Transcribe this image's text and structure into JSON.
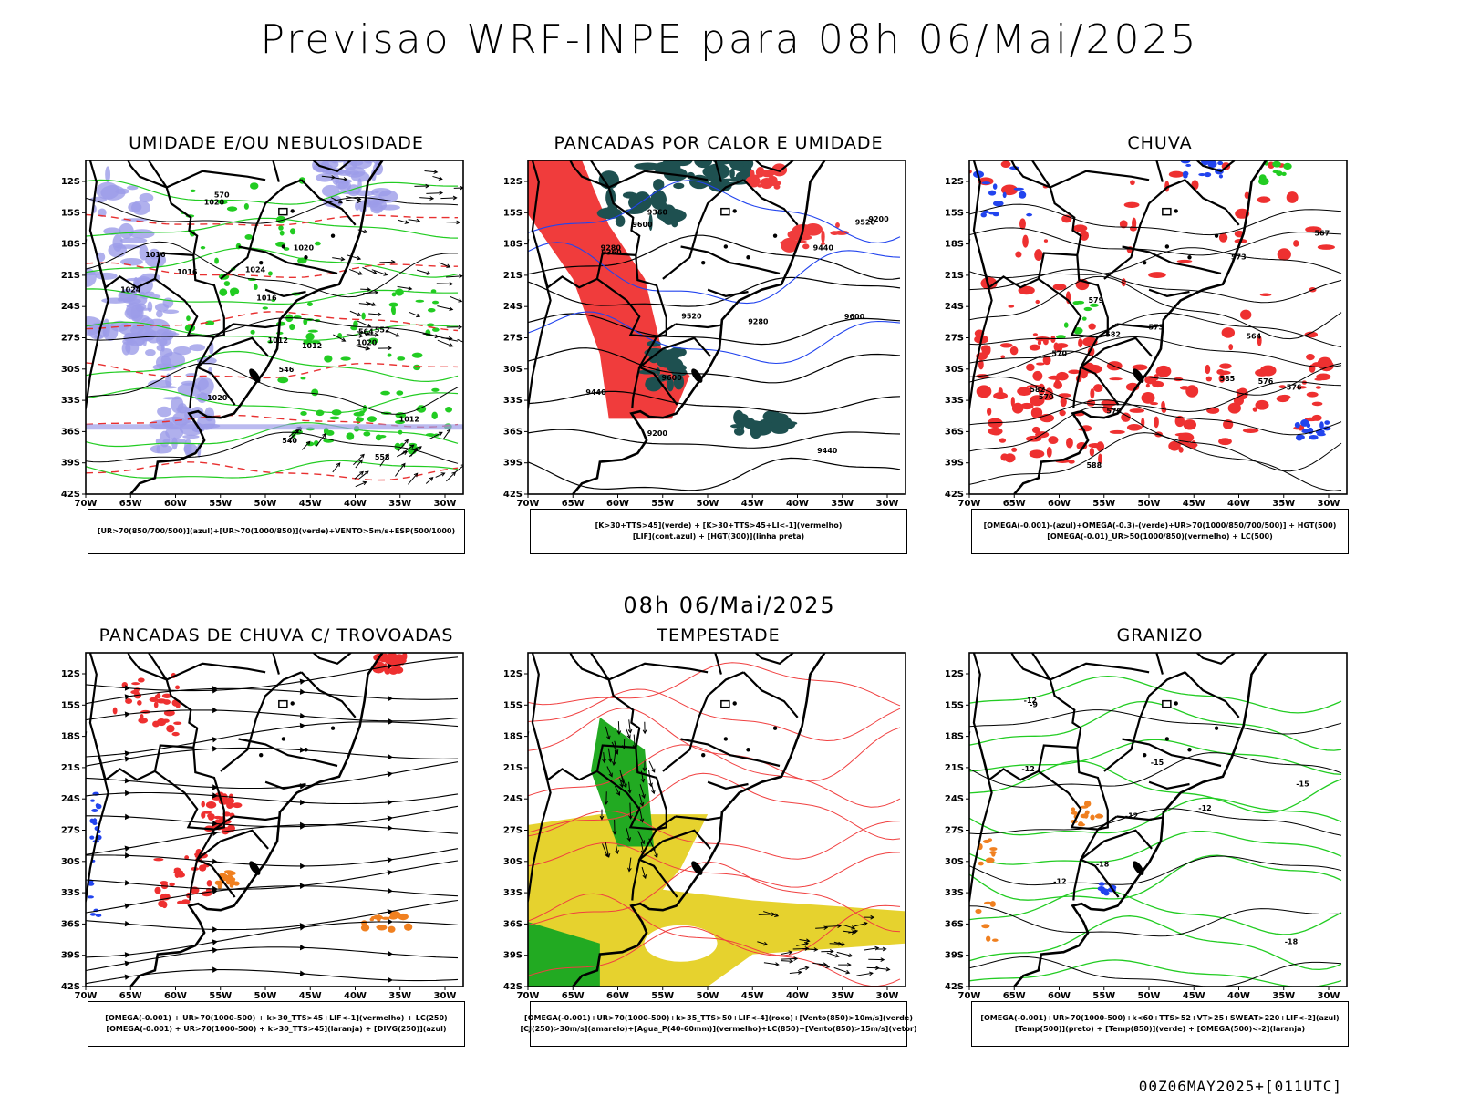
{
  "title": "Previsao WRF-INPE  para 08h 06/Mai/2025",
  "subtitle": "08h 06/Mai/2025",
  "footer": "00Z06MAY2025+[011UTC]",
  "axes": {
    "lat_labels": [
      "12S",
      "15S",
      "18S",
      "21S",
      "24S",
      "27S",
      "30S",
      "33S",
      "36S",
      "39S",
      "42S"
    ],
    "lon_labels": [
      "70W",
      "65W",
      "60W",
      "55W",
      "50W",
      "45W",
      "40W",
      "35W",
      "30W"
    ]
  },
  "panels": [
    {
      "id": "umidade",
      "title": "UMIDADE E/OU NEBULOSIDADE",
      "legend": [
        "[UR>70(850/700/500)](azul)+[UR>70(1000/850)](verde)+VENTO>5m/s+ESP(500/1000)"
      ],
      "colors": {
        "blue": "#9c9ce8",
        "green": "#22cc22",
        "red": "#e83030",
        "black": "#000000"
      },
      "contour_labels": [
        "1016",
        "1016",
        "1016",
        "1020",
        "1020",
        "1020",
        "1024",
        "1012",
        "1012",
        "1020",
        "570",
        "564",
        "558",
        "552",
        "546",
        "540",
        "1024",
        "1012"
      ]
    },
    {
      "id": "pancadas-calor",
      "title": "PANCADAS POR CALOR E UMIDADE",
      "legend": [
        "[K>30+TTS>45](verde) + [K>30+TTS>45+LI<-1](vermelho)",
        "[LIF](cont.azul) + [HGT(300)](linha preta)"
      ],
      "colors": {
        "red": "#f03c3c",
        "green": "#1e5050",
        "blue": "#2244ee",
        "black": "#000000"
      },
      "contour_labels": [
        "9600",
        "9600",
        "9520",
        "9440",
        "9440",
        "9360",
        "9280",
        "9200",
        "9600",
        "9520",
        "9440",
        "9360",
        "9280",
        "9200"
      ]
    },
    {
      "id": "chuva",
      "title": "CHUVA",
      "legend": [
        "[OMEGA(-0.001)-(azul)+OMEGA(-0.3)-(verde)+UR>70(1000/850/700/500)] + HGT(500)",
        "[OMEGA(-0.01)_UR>50(1000/850)(vermelho) + LC(500)"
      ],
      "colors": {
        "red": "#ee3030",
        "green": "#22cc22",
        "blue": "#2244ee",
        "black": "#000000"
      },
      "contour_labels": [
        "588",
        "585",
        "582",
        "579",
        "576",
        "573",
        "570",
        "567",
        "564",
        "582",
        "579",
        "576",
        "573",
        "570"
      ]
    },
    {
      "id": "pancadas-trovoadas",
      "title": "PANCADAS DE CHUVA C/ TROVOADAS",
      "legend": [
        "[OMEGA(-0.001) + UR>70(1000-500) + k>30_TTS>45+LIF<-1](vermelho) + LC(250)",
        "[OMEGA(-0.001) + UR>70(1000-500) + k>30_TTS>45](laranja) + [DIVG(250)](azul)"
      ],
      "colors": {
        "red": "#ee3030",
        "orange": "#f08020",
        "blue": "#2244ee",
        "black": "#000000"
      },
      "contour_labels": []
    },
    {
      "id": "tempestade",
      "title": "TEMPESTADE",
      "legend": [
        "[OMEGA(-0.001)+UR>70(1000-500)+k>35_TTS>50+LIF<-4](roxo)+[Vento(850)>10m/s](verde)",
        "[CJ(250)>30m/s](amarelo)+[Agua_P(40-60mm)](vermelho)+LC(850)+[Vento(850)>15m/s](vetor)"
      ],
      "colors": {
        "yellow": "#e6d22e",
        "green": "#22aa22",
        "red": "#f04040",
        "black": "#000000"
      },
      "contour_labels": []
    },
    {
      "id": "granizo",
      "title": "GRANIZO",
      "legend": [
        "[OMEGA(-0.001)+UR>70(1000-500)+k<60+TTS>52+VT>25+SWEAT>220+LIF<-2](azul)",
        "[Temp(500)](preto) + [Temp(850)](verde) + [OMEGA(500)<-2](laranja)"
      ],
      "colors": {
        "green": "#22cc22",
        "orange": "#f08020",
        "blue": "#2244ee",
        "black": "#000000"
      },
      "contour_labels": [
        "-12",
        "-12",
        "-12",
        "-15",
        "-18",
        "-15",
        "-18",
        "-12",
        "-9",
        "-12"
      ]
    }
  ]
}
